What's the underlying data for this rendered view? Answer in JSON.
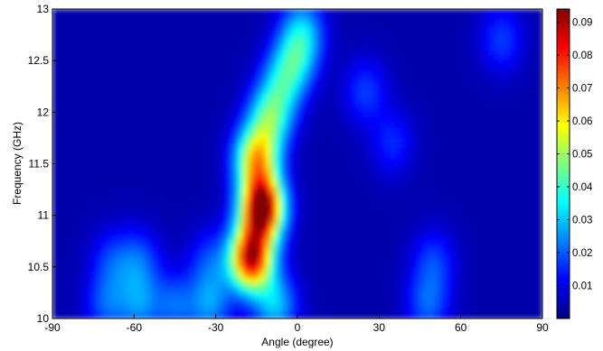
{
  "chart_data": {
    "type": "heatmap",
    "title": "",
    "xlabel": "Angle (degree)",
    "ylabel": "Frequency (GHz)",
    "xlim": [
      -90,
      90
    ],
    "ylim": [
      10,
      13
    ],
    "x_ticks": [
      -90,
      -60,
      -30,
      0,
      30,
      60,
      90
    ],
    "x_tick_labels": [
      "-90",
      "-60",
      "-30",
      "0",
      "30",
      "60",
      "90"
    ],
    "y_ticks": [
      10,
      10.5,
      11,
      11.5,
      12,
      12.5,
      13
    ],
    "y_tick_labels": [
      "10",
      "10.5",
      "11",
      "11.5",
      "12",
      "12.5",
      "13"
    ],
    "colormap": "jet",
    "colorbar": {
      "range": [
        0,
        0.094
      ],
      "ticks": [
        0.01,
        0.02,
        0.03,
        0.04,
        0.05,
        0.06,
        0.07,
        0.08,
        0.09
      ],
      "tick_labels": [
        "0.01",
        "0.02",
        "0.03",
        "0.04",
        "0.05",
        "0.06",
        "0.07",
        "0.08",
        "0.09"
      ],
      "placement": "right"
    },
    "background_level": 0.004,
    "hotspots": [
      {
        "angle": -13,
        "freq": 11.07,
        "value": 0.092
      },
      {
        "angle": -17,
        "freq": 10.58,
        "value": 0.082
      },
      {
        "angle": -15,
        "freq": 11.55,
        "value": 0.055
      },
      {
        "angle": -10,
        "freq": 11.95,
        "value": 0.035
      },
      {
        "angle": -5,
        "freq": 12.3,
        "value": 0.025
      },
      {
        "angle": 0,
        "freq": 12.55,
        "value": 0.023
      },
      {
        "angle": 2,
        "freq": 12.82,
        "value": 0.02
      },
      {
        "angle": -8,
        "freq": 10.13,
        "value": 0.025
      },
      {
        "angle": -32,
        "freq": 10.13,
        "value": 0.02
      },
      {
        "angle": -45,
        "freq": 10.13,
        "value": 0.016
      },
      {
        "angle": -58,
        "freq": 10.13,
        "value": 0.018
      },
      {
        "angle": -70,
        "freq": 10.13,
        "value": 0.015
      },
      {
        "angle": -58,
        "freq": 10.55,
        "value": 0.015
      },
      {
        "angle": -68,
        "freq": 10.55,
        "value": 0.012
      },
      {
        "angle": -32,
        "freq": 10.55,
        "value": 0.013
      },
      {
        "angle": 48,
        "freq": 10.13,
        "value": 0.016
      },
      {
        "angle": 50,
        "freq": 10.55,
        "value": 0.013
      },
      {
        "angle": 75,
        "freq": 12.7,
        "value": 0.013
      },
      {
        "angle": 25,
        "freq": 12.2,
        "value": 0.013
      },
      {
        "angle": 35,
        "freq": 11.7,
        "value": 0.011
      }
    ]
  }
}
